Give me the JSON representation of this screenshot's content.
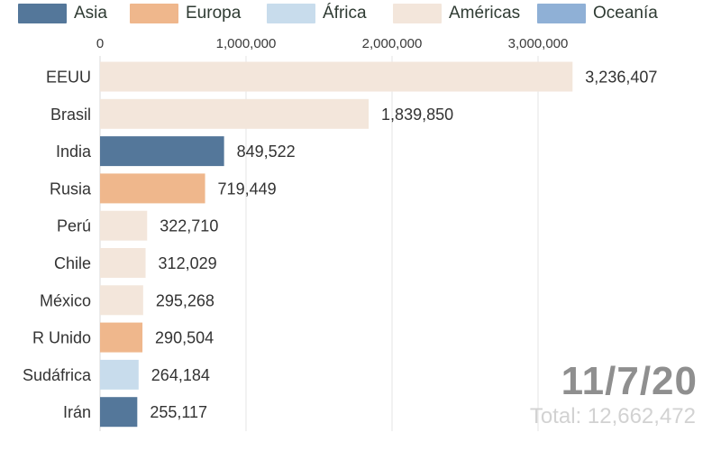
{
  "legend": [
    {
      "label": "Asia",
      "color": "#54779a"
    },
    {
      "label": "Europa",
      "color": "#efb78c"
    },
    {
      "label": "África",
      "color": "#c8dcec"
    },
    {
      "label": "Américas",
      "color": "#f3e6db"
    },
    {
      "label": "Oceanía",
      "color": "#8fb0d6"
    }
  ],
  "chart_data": {
    "type": "bar",
    "orientation": "horizontal",
    "categories": [
      "EEUU",
      "Brasil",
      "India",
      "Rusia",
      "Perú",
      "Chile",
      "México",
      "R Unido",
      "Sudáfrica",
      "Irán"
    ],
    "values": [
      3236407,
      1839850,
      849522,
      719449,
      322710,
      312029,
      295268,
      290504,
      264184,
      255117
    ],
    "value_labels": [
      "3,236,407",
      "1,839,850",
      "849,522",
      "719,449",
      "322,710",
      "312,029",
      "295,268",
      "290,504",
      "264,184",
      "255,117"
    ],
    "region": [
      "Américas",
      "Américas",
      "Asia",
      "Europa",
      "Américas",
      "Américas",
      "Américas",
      "Europa",
      "África",
      "Asia"
    ],
    "x_ticks": [
      0,
      1000000,
      2000000,
      3000000
    ],
    "x_tick_labels": [
      "0",
      "1,000,000",
      "2,000,000",
      "3,000,000"
    ],
    "xlim": [
      0,
      3000000
    ],
    "grid": true,
    "legend_placement": "top"
  },
  "date": "11/7/20",
  "total": {
    "prefix": "Total:",
    "value": "12,662,472"
  }
}
